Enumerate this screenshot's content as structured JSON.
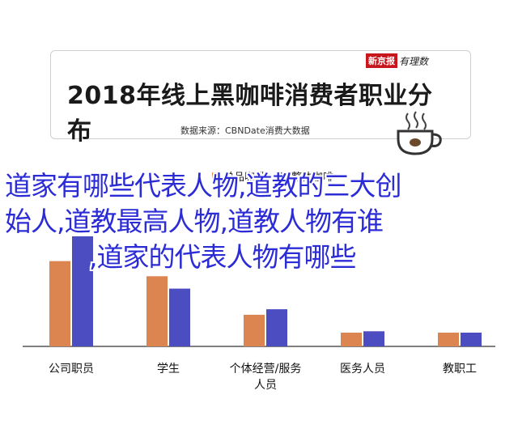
{
  "header": {
    "title": "2018年线上黑咖啡消费者职业分布",
    "source": "数据来源：CBNDate消费大数据",
    "brand_left": "新京报",
    "brand_right": "有理数"
  },
  "overlay_text": {
    "line1": "道家有哪些代表人物,道教的三大创",
    "line2": "始人,道教最高人物,道教人物有谁",
    "line3": ",道家的代表人物有哪些"
  },
  "colors": {
    "series1": "#dd8550",
    "series2": "#4b4dc0",
    "overlay_text": "#2c2cd6",
    "brand_red": "#c8161d"
  },
  "chart_data": {
    "type": "bar",
    "categories": [
      "公司职员",
      "学生",
      "个体经营/服务人员",
      "医务人员",
      "教职工"
    ],
    "category_lines": [
      [
        "公司职员"
      ],
      [
        "学生"
      ],
      [
        "个体经营/服务",
        "人员"
      ],
      [
        "医务人员"
      ],
      [
        "教职工"
      ]
    ],
    "series": [
      {
        "name": "单品咖啡",
        "values": [
          62,
          51,
          23,
          10,
          10
        ]
      },
      {
        "name": "整体咖啡",
        "values": [
          80,
          42,
          27,
          11,
          10
        ]
      }
    ],
    "ylim": [
      0,
      80
    ],
    "grid": false,
    "legend": "top-center"
  }
}
